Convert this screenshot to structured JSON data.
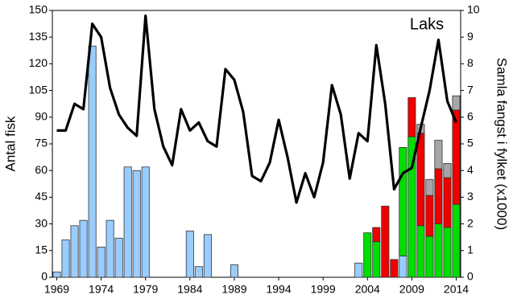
{
  "chart_data": {
    "type": "combo",
    "annotation": "Laks",
    "y_label": "Antal fisk",
    "y2_label": "Samla fangst i fylket (x1000)",
    "categories": [
      "1969",
      null,
      null,
      null,
      null,
      "1974",
      null,
      null,
      null,
      null,
      "1979",
      null,
      null,
      null,
      null,
      "1984",
      null,
      null,
      null,
      null,
      "1989",
      null,
      null,
      null,
      null,
      "1994",
      null,
      null,
      null,
      null,
      "1999",
      null,
      null,
      null,
      null,
      "2004",
      null,
      null,
      null,
      null,
      "2009",
      null,
      null,
      null,
      null,
      "2014"
    ],
    "ylim": [
      0,
      150
    ],
    "yticks": [
      0,
      15,
      30,
      45,
      60,
      75,
      90,
      105,
      120,
      135,
      150
    ],
    "y2lim": [
      0,
      10
    ],
    "y2ticks": [
      0,
      1,
      2,
      3,
      4,
      5,
      6,
      7,
      8,
      9,
      10
    ],
    "stacked": true,
    "series": [
      {
        "type": "bar",
        "color": "#99ccff",
        "values": [
          3,
          21,
          29,
          32,
          130,
          17,
          32,
          22,
          62,
          60,
          62,
          0,
          0,
          0,
          0,
          26,
          6,
          24,
          0,
          0,
          7,
          0,
          0,
          0,
          0,
          0,
          0,
          0,
          0,
          0,
          0,
          0,
          0,
          0,
          8,
          0,
          0,
          0,
          0,
          12,
          0,
          0,
          0,
          0,
          0,
          0
        ]
      },
      {
        "type": "bar",
        "color": "#00dd00",
        "values": [
          0,
          0,
          0,
          0,
          0,
          0,
          0,
          0,
          0,
          0,
          0,
          0,
          0,
          0,
          0,
          0,
          0,
          0,
          0,
          0,
          0,
          0,
          0,
          0,
          0,
          0,
          0,
          0,
          0,
          0,
          0,
          0,
          0,
          0,
          0,
          25,
          20,
          0,
          0,
          61,
          79,
          29,
          23,
          30,
          28,
          41
        ]
      },
      {
        "type": "bar",
        "color": "#ee0000",
        "values": [
          0,
          0,
          0,
          0,
          0,
          0,
          0,
          0,
          0,
          0,
          0,
          0,
          0,
          0,
          0,
          0,
          0,
          0,
          0,
          0,
          0,
          0,
          0,
          0,
          0,
          0,
          0,
          0,
          0,
          0,
          0,
          0,
          0,
          0,
          0,
          0,
          8,
          40,
          10,
          0,
          22,
          52,
          23,
          31,
          28,
          53
        ]
      },
      {
        "type": "bar",
        "color": "#a6a6a6",
        "values": [
          0,
          0,
          0,
          0,
          0,
          0,
          0,
          0,
          0,
          0,
          0,
          0,
          0,
          0,
          0,
          0,
          0,
          0,
          0,
          0,
          0,
          0,
          0,
          0,
          0,
          0,
          0,
          0,
          0,
          0,
          0,
          0,
          0,
          0,
          0,
          0,
          0,
          0,
          0,
          0,
          0,
          5,
          9,
          16,
          8,
          8
        ]
      },
      {
        "type": "line",
        "axis": "y2",
        "color": "#000000",
        "values": [
          5.5,
          5.5,
          6.5,
          6.3,
          9.5,
          9.0,
          7.1,
          6.1,
          5.6,
          5.3,
          9.8,
          6.3,
          4.9,
          4.2,
          6.3,
          5.5,
          5.8,
          5.1,
          4.9,
          7.8,
          7.4,
          6.2,
          3.8,
          3.6,
          4.3,
          5.9,
          4.5,
          2.8,
          3.9,
          3.0,
          4.3,
          7.2,
          6.1,
          3.7,
          5.4,
          5.1,
          8.7,
          6.5,
          3.3,
          3.9,
          4.1,
          5.6,
          7.0,
          8.9,
          6.6,
          5.8
        ]
      }
    ]
  }
}
